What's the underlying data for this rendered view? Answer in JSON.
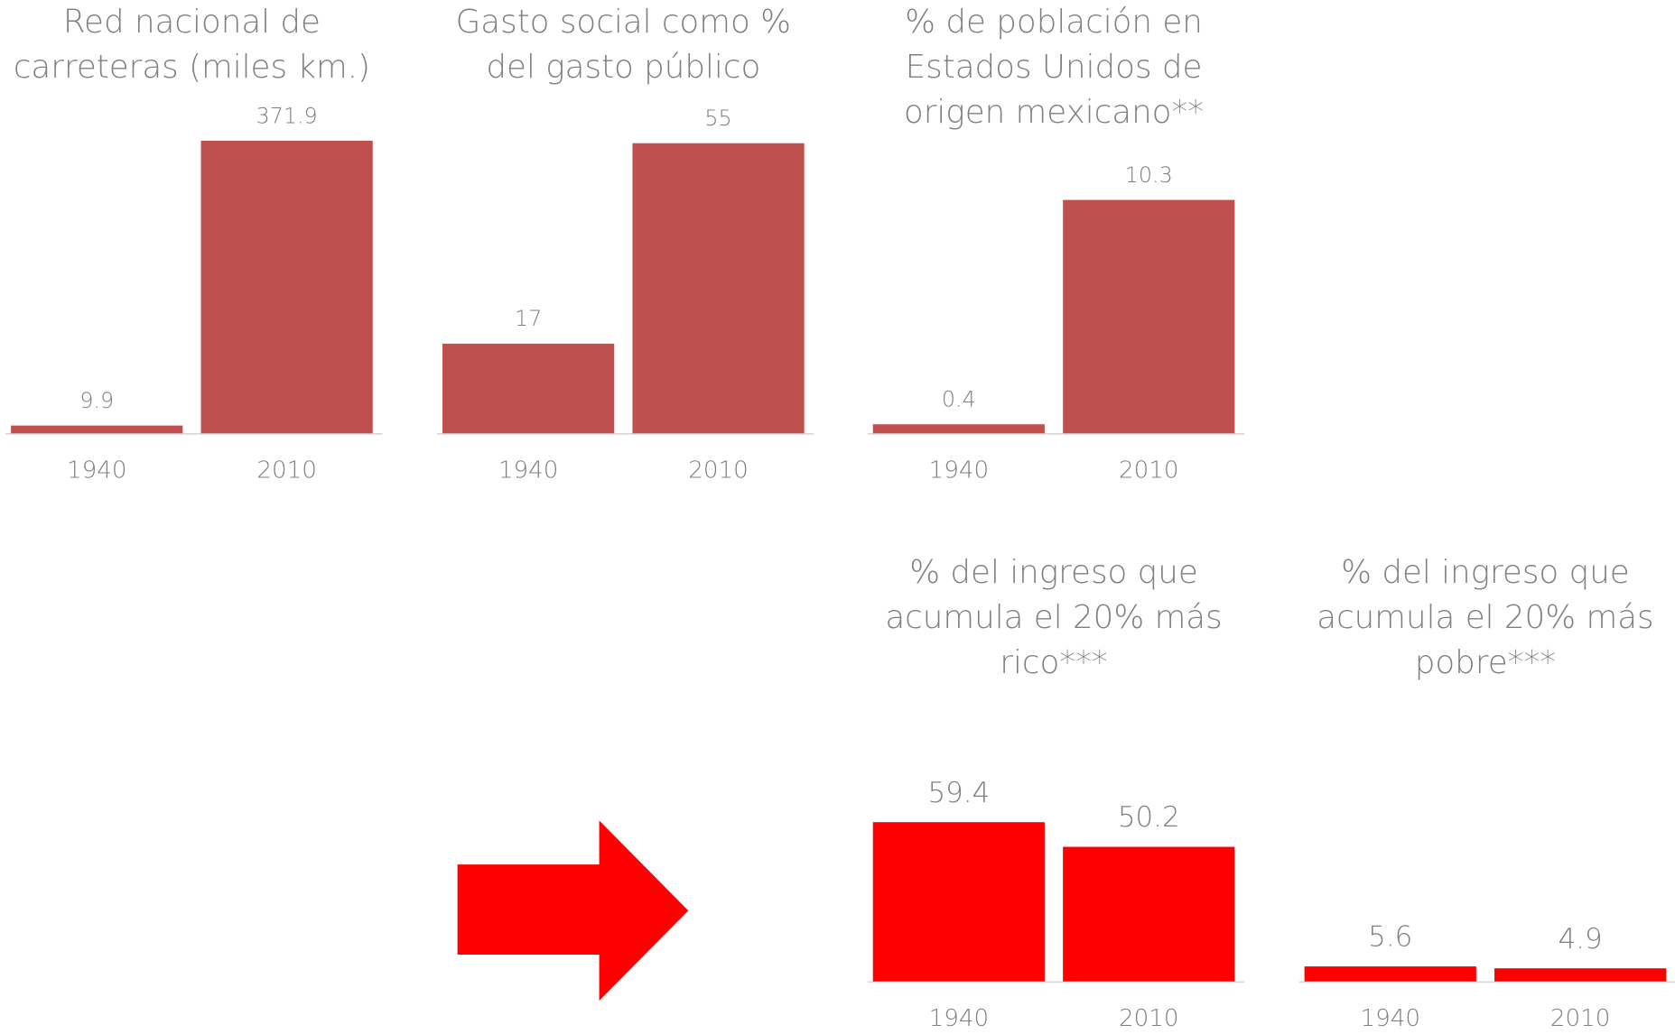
{
  "chart_data": [
    {
      "type": "bar",
      "title": [
        "Red nacional de",
        "carreteras (miles km.)"
      ],
      "categories": [
        "1940",
        "2010"
      ],
      "values": [
        9.9,
        371.9
      ],
      "color": "#c0504d",
      "ylim": [
        0,
        409
      ]
    },
    {
      "type": "bar",
      "title": [
        "Gasto social como %",
        "del gasto público"
      ],
      "categories": [
        "1940",
        "2010"
      ],
      "values": [
        17,
        55
      ],
      "color": "#c0504d",
      "ylim": [
        0,
        61
      ]
    },
    {
      "type": "bar",
      "title": [
        "% de población en",
        "Estados Unidos de",
        "origen mexicano**"
      ],
      "categories": [
        "1940",
        "2010"
      ],
      "values": [
        0.4,
        10.3
      ],
      "color": "#c0504d",
      "ylim": [
        0,
        14.2
      ]
    },
    {
      "type": "bar",
      "title": [
        "% del ingreso que",
        "acumula el 20% más",
        "rico***"
      ],
      "categories": [
        "1940",
        "2010"
      ],
      "values": [
        59.4,
        50.2
      ],
      "color": "#ff0000",
      "ylim": [
        0,
        120
      ]
    },
    {
      "type": "bar",
      "title": [
        "% del ingreso que",
        "acumula el 20% más",
        "pobre***"
      ],
      "categories": [
        "1940",
        "2010"
      ],
      "values": [
        5.6,
        4.9
      ],
      "color": "#ff0000",
      "ylim": [
        0,
        120
      ]
    }
  ]
}
